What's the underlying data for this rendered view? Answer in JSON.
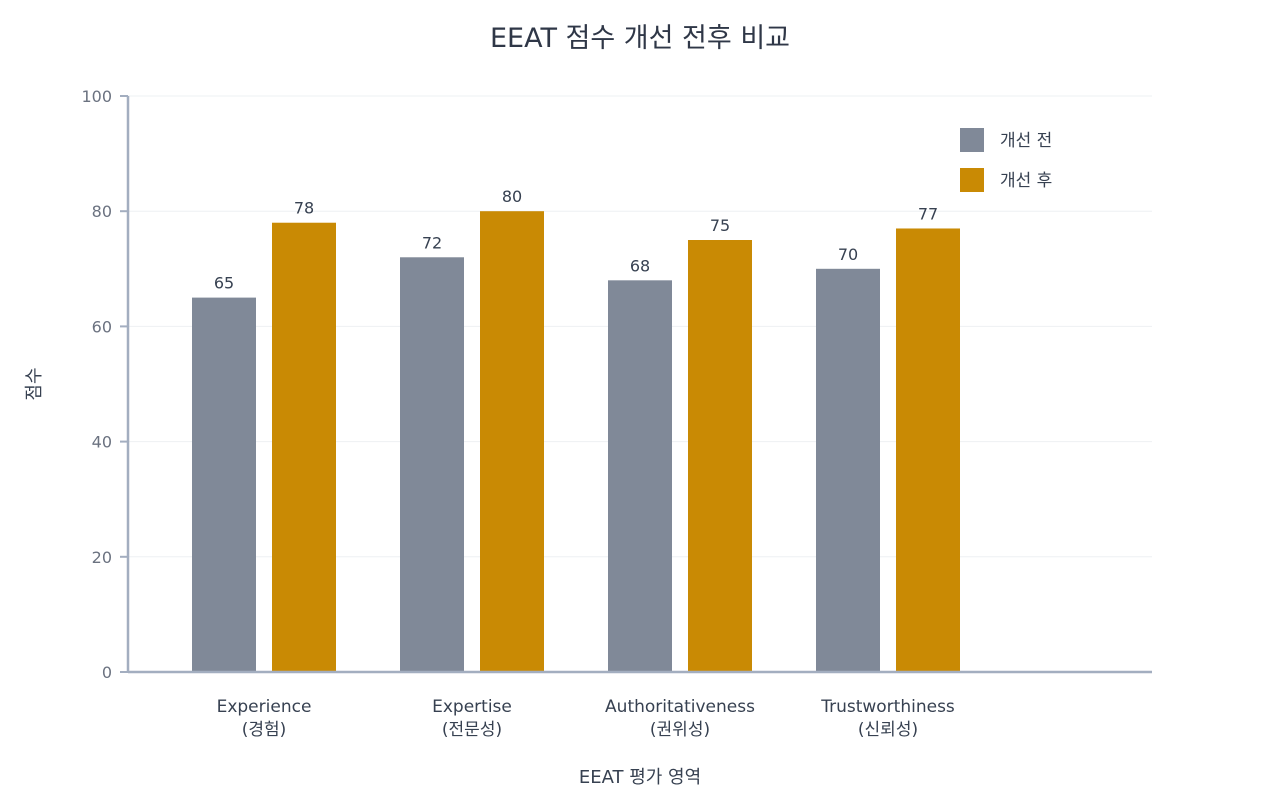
{
  "chart_data": {
    "type": "bar",
    "title": "EEAT 점수 개선 전후 비교",
    "xlabel": "EEAT 평가 영역",
    "ylabel": "점수",
    "ylim": [
      0,
      100
    ],
    "yticks": [
      0,
      20,
      40,
      60,
      80,
      100
    ],
    "grid": true,
    "legend_position": "top-right",
    "categories": [
      [
        "Experience",
        "(경험)"
      ],
      [
        "Expertise",
        "(전문성)"
      ],
      [
        "Authoritativeness",
        "(권위성)"
      ],
      [
        "Trustworthiness",
        "(신뢰성)"
      ]
    ],
    "series": [
      {
        "name": "개선 전",
        "color": "#808998",
        "values": [
          65,
          72,
          68,
          70
        ]
      },
      {
        "name": "개선 후",
        "color": "#c98a04",
        "values": [
          78,
          80,
          75,
          77
        ]
      }
    ],
    "data_labels": true
  }
}
